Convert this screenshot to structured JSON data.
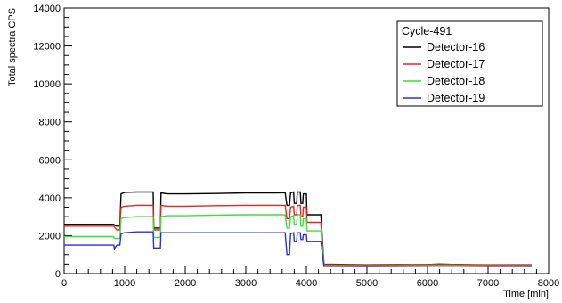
{
  "chart_data": {
    "type": "line",
    "title": "",
    "xlabel": "Time [min]",
    "ylabel": "Total spectra CPS",
    "xlim": [
      0,
      8000
    ],
    "ylim": [
      0,
      14000
    ],
    "x_ticks": [
      0,
      1000,
      2000,
      3000,
      4000,
      5000,
      6000,
      7000,
      8000
    ],
    "y_ticks": [
      0,
      2000,
      4000,
      6000,
      8000,
      10000,
      12000,
      14000
    ],
    "grid": false,
    "legend": {
      "title": "Cycle-491",
      "placement": "top-right"
    },
    "series": [
      {
        "name": "Detector-16",
        "color": "#000000",
        "points": [
          [
            0,
            2600
          ],
          [
            820,
            2600
          ],
          [
            830,
            2550
          ],
          [
            870,
            2500
          ],
          [
            920,
            2500
          ],
          [
            940,
            4200
          ],
          [
            1000,
            4280
          ],
          [
            1200,
            4300
          ],
          [
            1400,
            4300
          ],
          [
            1470,
            4300
          ],
          [
            1480,
            2400
          ],
          [
            1590,
            2400
          ],
          [
            1600,
            4250
          ],
          [
            1700,
            4200
          ],
          [
            2000,
            4200
          ],
          [
            2500,
            4220
          ],
          [
            3000,
            4250
          ],
          [
            3500,
            4250
          ],
          [
            3650,
            4260
          ],
          [
            3680,
            3600
          ],
          [
            3720,
            3600
          ],
          [
            3740,
            4250
          ],
          [
            3790,
            4300
          ],
          [
            3800,
            3700
          ],
          [
            3840,
            3700
          ],
          [
            3850,
            4300
          ],
          [
            3900,
            4300
          ],
          [
            3910,
            3700
          ],
          [
            3940,
            3700
          ],
          [
            3950,
            4200
          ],
          [
            4000,
            4200
          ],
          [
            4010,
            3100
          ],
          [
            4240,
            3100
          ],
          [
            4290,
            500
          ],
          [
            5000,
            460
          ],
          [
            5500,
            470
          ],
          [
            6000,
            480
          ],
          [
            6200,
            500
          ],
          [
            6500,
            480
          ],
          [
            7000,
            460
          ],
          [
            7500,
            460
          ],
          [
            7720,
            460
          ]
        ]
      },
      {
        "name": "Detector-17",
        "color": "#e8251e",
        "points": [
          [
            0,
            2500
          ],
          [
            820,
            2500
          ],
          [
            830,
            2450
          ],
          [
            870,
            2300
          ],
          [
            920,
            2300
          ],
          [
            940,
            3500
          ],
          [
            1000,
            3550
          ],
          [
            1200,
            3600
          ],
          [
            1400,
            3600
          ],
          [
            1470,
            3600
          ],
          [
            1480,
            2300
          ],
          [
            1590,
            2300
          ],
          [
            1600,
            3600
          ],
          [
            1700,
            3550
          ],
          [
            2000,
            3550
          ],
          [
            2500,
            3580
          ],
          [
            3000,
            3600
          ],
          [
            3500,
            3600
          ],
          [
            3650,
            3600
          ],
          [
            3680,
            2900
          ],
          [
            3720,
            2900
          ],
          [
            3740,
            3500
          ],
          [
            3790,
            3550
          ],
          [
            3800,
            3100
          ],
          [
            3840,
            3100
          ],
          [
            3850,
            3600
          ],
          [
            3900,
            3600
          ],
          [
            3910,
            3000
          ],
          [
            3940,
            3000
          ],
          [
            3950,
            3500
          ],
          [
            4000,
            3500
          ],
          [
            4010,
            2700
          ],
          [
            4240,
            2700
          ],
          [
            4290,
            480
          ],
          [
            5000,
            440
          ],
          [
            5500,
            450
          ],
          [
            6000,
            470
          ],
          [
            6200,
            510
          ],
          [
            6500,
            470
          ],
          [
            7000,
            450
          ],
          [
            7500,
            440
          ],
          [
            7720,
            440
          ]
        ]
      },
      {
        "name": "Detector-18",
        "color": "#3ede3e",
        "points": [
          [
            0,
            1950
          ],
          [
            820,
            1950
          ],
          [
            830,
            1850
          ],
          [
            870,
            1850
          ],
          [
            920,
            1850
          ],
          [
            940,
            2900
          ],
          [
            1000,
            2950
          ],
          [
            1200,
            3000
          ],
          [
            1400,
            3000
          ],
          [
            1470,
            3000
          ],
          [
            1480,
            1900
          ],
          [
            1590,
            1900
          ],
          [
            1600,
            3000
          ],
          [
            1700,
            3050
          ],
          [
            2000,
            3050
          ],
          [
            2500,
            3080
          ],
          [
            3000,
            3100
          ],
          [
            3500,
            3100
          ],
          [
            3650,
            3100
          ],
          [
            3680,
            2400
          ],
          [
            3720,
            2400
          ],
          [
            3740,
            3000
          ],
          [
            3790,
            3050
          ],
          [
            3800,
            2600
          ],
          [
            3840,
            2600
          ],
          [
            3850,
            3100
          ],
          [
            3900,
            3100
          ],
          [
            3910,
            2500
          ],
          [
            3940,
            2500
          ],
          [
            3950,
            2900
          ],
          [
            4000,
            2900
          ],
          [
            4010,
            2250
          ],
          [
            4240,
            2250
          ],
          [
            4290,
            420
          ],
          [
            5000,
            400
          ],
          [
            5500,
            410
          ],
          [
            6000,
            420
          ],
          [
            6200,
            440
          ],
          [
            6500,
            420
          ],
          [
            7000,
            400
          ],
          [
            7500,
            400
          ],
          [
            7720,
            400
          ]
        ]
      },
      {
        "name": "Detector-19",
        "color": "#2b31d6",
        "points": [
          [
            0,
            1500
          ],
          [
            820,
            1500
          ],
          [
            830,
            1300
          ],
          [
            870,
            1500
          ],
          [
            920,
            1500
          ],
          [
            940,
            2100
          ],
          [
            1000,
            2150
          ],
          [
            1200,
            2200
          ],
          [
            1400,
            2200
          ],
          [
            1470,
            2200
          ],
          [
            1480,
            1350
          ],
          [
            1590,
            1350
          ],
          [
            1600,
            2150
          ],
          [
            1700,
            2150
          ],
          [
            2000,
            2150
          ],
          [
            2500,
            2150
          ],
          [
            3000,
            2150
          ],
          [
            3500,
            2150
          ],
          [
            3650,
            2150
          ],
          [
            3680,
            1000
          ],
          [
            3720,
            1000
          ],
          [
            3740,
            2100
          ],
          [
            3790,
            2150
          ],
          [
            3800,
            1700
          ],
          [
            3840,
            1700
          ],
          [
            3850,
            2150
          ],
          [
            3900,
            2150
          ],
          [
            3910,
            1800
          ],
          [
            3940,
            1800
          ],
          [
            3950,
            2050
          ],
          [
            4000,
            2050
          ],
          [
            4010,
            1700
          ],
          [
            4240,
            1700
          ],
          [
            4290,
            380
          ],
          [
            5000,
            370
          ],
          [
            5500,
            380
          ],
          [
            6000,
            390
          ],
          [
            6200,
            400
          ],
          [
            6500,
            390
          ],
          [
            7000,
            380
          ],
          [
            7500,
            380
          ],
          [
            7720,
            380
          ]
        ]
      }
    ]
  }
}
